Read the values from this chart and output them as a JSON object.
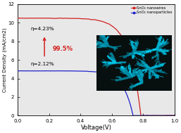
{
  "title": "",
  "xlabel": "Voltage(V)",
  "ylabel": "Current Density (mA/cm2)",
  "xlim": [
    0.0,
    1.0
  ],
  "ylim": [
    0,
    12
  ],
  "xticks": [
    0.0,
    0.2,
    0.4,
    0.6,
    0.8,
    1.0
  ],
  "yticks": [
    0,
    2,
    4,
    6,
    8,
    10,
    12
  ],
  "nanowire_color": "#d42020",
  "nanoparticle_color": "#2020cc",
  "eta_top": "η=4.23%",
  "eta_bottom": "η=2.12%",
  "pct_label": "99.5%",
  "legend_labels": [
    "SnO₂ nanowires",
    "SnO₂ nanoparticles"
  ],
  "plot_bg": "#e8e8e8",
  "nw_Jsc": 10.5,
  "nw_Voc": 0.785,
  "nw_n": 2.8,
  "np_Jsc": 4.82,
  "np_Voc": 0.735,
  "np_n": 2.4
}
